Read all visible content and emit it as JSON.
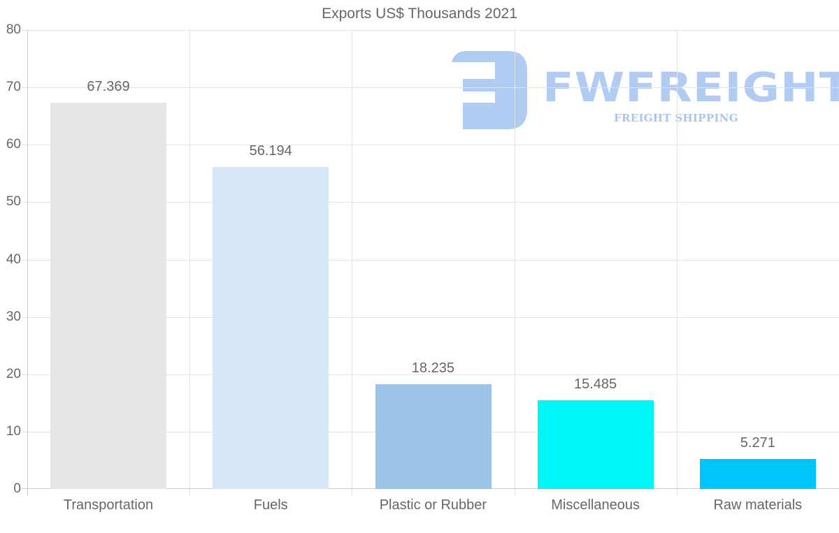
{
  "chart_data": {
    "type": "bar",
    "title": "Exports US$ Thousands 2021",
    "categories": [
      "Transportation",
      "Fuels",
      "Plastic or Rubber",
      "Miscellaneous",
      "Raw materials"
    ],
    "values": [
      67.369,
      56.194,
      18.235,
      15.485,
      5.271
    ],
    "data_labels": [
      "67.369",
      "56.194",
      "18.235",
      "15.485",
      "5.271"
    ],
    "colors": [
      "#e7e7e7",
      "#d6e8f8",
      "#9bc4e7",
      "#00f5f7",
      "#00c6fc"
    ],
    "xlabel": "",
    "ylabel": "",
    "ylim": [
      0,
      80
    ],
    "yticks": [
      "0",
      "10",
      "20",
      "30",
      "40",
      "50",
      "60",
      "70",
      "80"
    ],
    "grid": true,
    "legend": "none"
  },
  "watermark": {
    "brand": "FWFREIGHT",
    "tagline": "FREIGHT SHIPPING",
    "color": "#a9c6f2"
  }
}
